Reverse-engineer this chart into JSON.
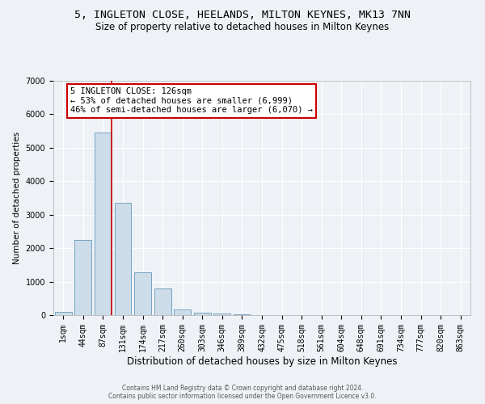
{
  "title": "5, INGLETON CLOSE, HEELANDS, MILTON KEYNES, MK13 7NN",
  "subtitle": "Size of property relative to detached houses in Milton Keynes",
  "xlabel": "Distribution of detached houses by size in Milton Keynes",
  "ylabel": "Number of detached properties",
  "bin_labels": [
    "1sqm",
    "44sqm",
    "87sqm",
    "131sqm",
    "174sqm",
    "217sqm",
    "260sqm",
    "303sqm",
    "346sqm",
    "389sqm",
    "432sqm",
    "475sqm",
    "518sqm",
    "561sqm",
    "604sqm",
    "648sqm",
    "691sqm",
    "734sqm",
    "777sqm",
    "820sqm",
    "863sqm"
  ],
  "bar_heights": [
    100,
    2250,
    5450,
    3350,
    1270,
    800,
    175,
    75,
    50,
    20,
    5,
    2,
    2,
    1,
    1,
    1,
    0,
    0,
    0,
    0,
    0
  ],
  "bar_color": "#ccdce8",
  "bar_edge_color": "#6699bb",
  "ylim": [
    0,
    7000
  ],
  "yticks": [
    0,
    1000,
    2000,
    3000,
    4000,
    5000,
    6000,
    7000
  ],
  "property_bin_index": 2,
  "vline_color": "#cc0000",
  "annotation_text": "5 INGLETON CLOSE: 126sqm\n← 53% of detached houses are smaller (6,999)\n46% of semi-detached houses are larger (6,070) →",
  "annotation_box_color": "#ffffff",
  "annotation_box_edge": "#cc0000",
  "footer_line1": "Contains HM Land Registry data © Crown copyright and database right 2024.",
  "footer_line2": "Contains public sector information licensed under the Open Government Licence v3.0.",
  "background_color": "#eef2f7",
  "grid_color": "#ffffff",
  "title_fontsize": 9.5,
  "subtitle_fontsize": 8.5,
  "xlabel_fontsize": 8.5,
  "ylabel_fontsize": 7.5,
  "tick_fontsize": 7,
  "annotation_fontsize": 7.5,
  "footer_fontsize": 5.5
}
